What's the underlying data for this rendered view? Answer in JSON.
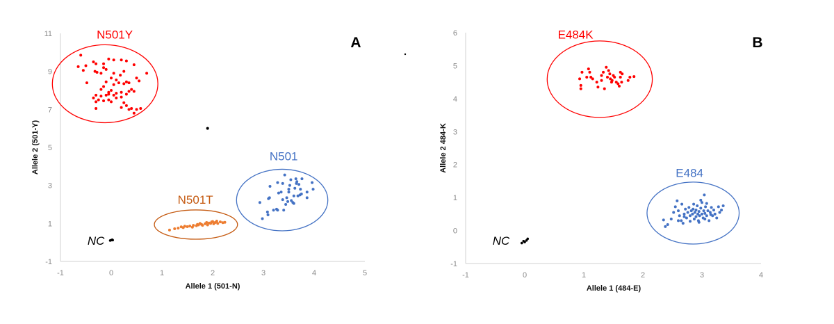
{
  "chart_data": [
    {
      "type": "scatter",
      "panel_label": "A",
      "xlabel": "Allele 1 (501-N)",
      "ylabel": "Allele 2 (501-Y)",
      "xlim": [
        -1,
        5
      ],
      "ylim": [
        -1,
        11
      ],
      "xticks": [
        "-1",
        "0",
        "1",
        "2",
        "3",
        "4",
        "5"
      ],
      "yticks": [
        "-1",
        "1",
        "3",
        "5",
        "7",
        "9",
        "11"
      ],
      "grid": false,
      "series": [
        {
          "name": "N501Y",
          "color": "#ff0000",
          "ellipse_color": "#ff0000",
          "label_color": "#ff0000",
          "label_pos": [
            0.07,
            10.95
          ],
          "ellipse": {
            "cx": -0.12,
            "cy": 8.35,
            "rx": 1.04,
            "ry": 2.05
          },
          "points": [
            [
              -0.65,
              9.25
            ],
            [
              -0.6,
              9.85
            ],
            [
              -0.55,
              9.05
            ],
            [
              -0.5,
              9.3
            ],
            [
              -0.48,
              8.4
            ],
            [
              -0.35,
              9.5
            ],
            [
              -0.3,
              9.4
            ],
            [
              -0.32,
              9.0
            ],
            [
              -0.28,
              8.95
            ],
            [
              -0.2,
              8.9
            ],
            [
              -0.15,
              9.2
            ],
            [
              -0.15,
              9.4
            ],
            [
              -0.1,
              9.1
            ],
            [
              -0.05,
              9.65
            ],
            [
              0.05,
              9.6
            ],
            [
              0.2,
              9.6
            ],
            [
              0.3,
              9.55
            ],
            [
              0.45,
              9.35
            ],
            [
              0.7,
              8.9
            ],
            [
              0.5,
              8.65
            ],
            [
              0.55,
              8.5
            ],
            [
              0.25,
              9.0
            ],
            [
              0.18,
              8.8
            ],
            [
              0.05,
              8.9
            ],
            [
              0.0,
              8.65
            ],
            [
              0.1,
              8.55
            ],
            [
              0.15,
              8.4
            ],
            [
              0.25,
              8.35
            ],
            [
              0.3,
              8.45
            ],
            [
              0.35,
              8.4
            ],
            [
              0.05,
              8.3
            ],
            [
              -0.1,
              8.45
            ],
            [
              -0.15,
              8.2
            ],
            [
              -0.2,
              8.05
            ],
            [
              0.0,
              8.0
            ],
            [
              0.1,
              7.85
            ],
            [
              0.2,
              7.9
            ],
            [
              0.3,
              7.8
            ],
            [
              0.35,
              7.95
            ],
            [
              0.45,
              7.95
            ],
            [
              0.4,
              8.05
            ],
            [
              -0.05,
              7.8
            ],
            [
              -0.1,
              7.75
            ],
            [
              -0.2,
              7.7
            ],
            [
              -0.3,
              7.75
            ],
            [
              -0.35,
              7.6
            ],
            [
              -0.25,
              7.5
            ],
            [
              -0.3,
              7.4
            ],
            [
              -0.15,
              7.45
            ],
            [
              -0.05,
              7.5
            ],
            [
              0.0,
              7.4
            ],
            [
              0.1,
              7.6
            ],
            [
              0.2,
              7.65
            ],
            [
              0.25,
              7.35
            ],
            [
              0.3,
              7.2
            ],
            [
              0.35,
              7.0
            ],
            [
              0.4,
              7.05
            ],
            [
              0.5,
              7.0
            ],
            [
              0.58,
              7.05
            ],
            [
              0.45,
              6.8
            ],
            [
              -0.3,
              7.05
            ],
            [
              0.2,
              7.1
            ],
            [
              -0.05,
              7.9
            ],
            [
              0.05,
              7.75
            ]
          ]
        },
        {
          "name": "N501T",
          "color": "#ed7d31",
          "ellipse_color": "#c55a11",
          "label_color": "#c55a11",
          "label_pos": [
            1.66,
            2.25
          ],
          "ellipse": {
            "cx": 1.67,
            "cy": 0.94,
            "rx": 0.82,
            "ry": 0.77
          },
          "points": [
            [
              1.15,
              0.65
            ],
            [
              1.25,
              0.72
            ],
            [
              1.32,
              0.75
            ],
            [
              1.38,
              0.82
            ],
            [
              1.42,
              0.78
            ],
            [
              1.45,
              0.85
            ],
            [
              1.5,
              0.83
            ],
            [
              1.55,
              0.86
            ],
            [
              1.6,
              0.8
            ],
            [
              1.62,
              0.9
            ],
            [
              1.68,
              0.88
            ],
            [
              1.72,
              0.92
            ],
            [
              1.75,
              1.0
            ],
            [
              1.78,
              0.95
            ],
            [
              1.8,
              0.9
            ],
            [
              1.85,
              0.98
            ],
            [
              1.88,
              1.05
            ],
            [
              1.9,
              0.92
            ],
            [
              1.93,
              1.02
            ],
            [
              1.96,
              1.0
            ],
            [
              2.0,
              1.1
            ],
            [
              2.02,
              0.98
            ],
            [
              2.05,
              1.05
            ],
            [
              2.08,
              1.12
            ],
            [
              2.1,
              1.0
            ],
            [
              2.15,
              1.08
            ],
            [
              2.2,
              1.04
            ],
            [
              2.24,
              1.06
            ],
            [
              1.7,
              0.95
            ],
            [
              1.98,
              1.08
            ]
          ]
        },
        {
          "name": "N501",
          "color": "#4472c4",
          "ellipse_color": "#4472c4",
          "label_color": "#4472c4",
          "label_pos": [
            3.4,
            4.55
          ],
          "ellipse": {
            "cx": 3.37,
            "cy": 2.23,
            "rx": 0.9,
            "ry": 1.62
          },
          "points": [
            [
              2.93,
              2.1
            ],
            [
              2.98,
              1.25
            ],
            [
              3.08,
              1.6
            ],
            [
              3.09,
              1.45
            ],
            [
              3.1,
              2.3
            ],
            [
              3.12,
              2.35
            ],
            [
              3.13,
              2.95
            ],
            [
              3.2,
              1.7
            ],
            [
              3.26,
              1.75
            ],
            [
              3.28,
              1.7
            ],
            [
              3.28,
              3.15
            ],
            [
              3.3,
              2.6
            ],
            [
              3.35,
              2.65
            ],
            [
              3.38,
              3.1
            ],
            [
              3.38,
              2.25
            ],
            [
              3.4,
              1.7
            ],
            [
              3.42,
              3.55
            ],
            [
              3.44,
              2.0
            ],
            [
              3.46,
              2.35
            ],
            [
              3.48,
              2.15
            ],
            [
              3.5,
              2.8
            ],
            [
              3.5,
              2.65
            ],
            [
              3.52,
              3.0
            ],
            [
              3.54,
              3.3
            ],
            [
              3.55,
              2.2
            ],
            [
              3.58,
              2.1
            ],
            [
              3.6,
              2.05
            ],
            [
              3.62,
              2.85
            ],
            [
              3.64,
              3.35
            ],
            [
              3.65,
              3.1
            ],
            [
              3.68,
              2.45
            ],
            [
              3.7,
              3.05
            ],
            [
              3.72,
              2.5
            ],
            [
              3.73,
              2.8
            ],
            [
              3.75,
              2.55
            ],
            [
              3.76,
              3.35
            ],
            [
              3.86,
              2.65
            ],
            [
              3.86,
              2.35
            ],
            [
              3.96,
              3.15
            ],
            [
              3.98,
              2.8
            ],
            [
              3.66,
              3.2
            ],
            [
              3.6,
              2.45
            ]
          ]
        },
        {
          "name": "NC",
          "color": "#000000",
          "label_pos": [
            -0.3,
            0.1
          ],
          "points": [
            [
              0,
              0.12
            ],
            [
              0.02,
              0.14
            ],
            [
              -0.02,
              0.1
            ],
            [
              0.03,
              0.12
            ]
          ]
        },
        {
          "color": "#000000",
          "points": [
            [
              1.9,
              6.0
            ]
          ]
        }
      ]
    },
    {
      "type": "scatter",
      "panel_label": "B",
      "xlabel": "Allele 1 (484-E)",
      "ylabel": "Allele 2 484-K",
      "xlim": [
        -1,
        4
      ],
      "ylim": [
        -1,
        6
      ],
      "xticks": [
        "-1",
        "0",
        "1",
        "2",
        "3",
        "4"
      ],
      "yticks": [
        "-1",
        "0",
        "1",
        "2",
        "3",
        "4",
        "5",
        "6"
      ],
      "grid": false,
      "series": [
        {
          "name": "E484K",
          "color": "#ff0000",
          "ellipse_color": "#ff0000",
          "label_color": "#ff0000",
          "label_pos": [
            0.86,
            5.95
          ],
          "ellipse": {
            "cx": 1.27,
            "cy": 4.59,
            "rx": 0.89,
            "ry": 1.16
          },
          "points": [
            [
              0.93,
              4.6
            ],
            [
              0.95,
              4.4
            ],
            [
              0.95,
              4.3
            ],
            [
              0.97,
              4.8
            ],
            [
              1.05,
              4.65
            ],
            [
              1.08,
              4.9
            ],
            [
              1.1,
              4.8
            ],
            [
              1.12,
              4.65
            ],
            [
              1.15,
              4.6
            ],
            [
              1.22,
              4.5
            ],
            [
              1.24,
              4.35
            ],
            [
              1.3,
              4.7
            ],
            [
              1.3,
              4.55
            ],
            [
              1.33,
              4.8
            ],
            [
              1.35,
              4.3
            ],
            [
              1.38,
              4.95
            ],
            [
              1.4,
              4.65
            ],
            [
              1.42,
              4.85
            ],
            [
              1.44,
              4.75
            ],
            [
              1.45,
              4.6
            ],
            [
              1.47,
              4.5
            ],
            [
              1.5,
              4.7
            ],
            [
              1.52,
              4.65
            ],
            [
              1.55,
              4.5
            ],
            [
              1.58,
              4.45
            ],
            [
              1.6,
              4.38
            ],
            [
              1.62,
              4.8
            ],
            [
              1.62,
              4.65
            ],
            [
              1.64,
              4.5
            ],
            [
              1.65,
              4.75
            ],
            [
              1.75,
              4.55
            ],
            [
              1.78,
              4.65
            ],
            [
              1.85,
              4.67
            ],
            [
              1.48,
              4.55
            ]
          ]
        },
        {
          "name": "E484",
          "color": "#4472c4",
          "ellipse_color": "#4472c4",
          "label_color": "#4472c4",
          "label_pos": [
            2.79,
            1.75
          ],
          "ellipse": {
            "cx": 2.85,
            "cy": 0.53,
            "rx": 0.78,
            "ry": 0.94
          },
          "points": [
            [
              2.35,
              0.32
            ],
            [
              2.38,
              0.12
            ],
            [
              2.42,
              0.18
            ],
            [
              2.48,
              0.35
            ],
            [
              2.52,
              0.55
            ],
            [
              2.55,
              0.72
            ],
            [
              2.58,
              0.9
            ],
            [
              2.6,
              0.6
            ],
            [
              2.62,
              0.45
            ],
            [
              2.65,
              0.3
            ],
            [
              2.66,
              0.8
            ],
            [
              2.68,
              0.22
            ],
            [
              2.7,
              0.5
            ],
            [
              2.72,
              0.65
            ],
            [
              2.74,
              0.38
            ],
            [
              2.76,
              0.55
            ],
            [
              2.78,
              0.7
            ],
            [
              2.8,
              0.28
            ],
            [
              2.8,
              0.45
            ],
            [
              2.82,
              0.6
            ],
            [
              2.84,
              0.5
            ],
            [
              2.86,
              0.8
            ],
            [
              2.87,
              0.35
            ],
            [
              2.88,
              0.55
            ],
            [
              2.9,
              0.62
            ],
            [
              2.9,
              0.42
            ],
            [
              2.92,
              0.75
            ],
            [
              2.93,
              0.5
            ],
            [
              2.94,
              0.3
            ],
            [
              2.95,
              0.58
            ],
            [
              2.96,
              0.45
            ],
            [
              2.98,
              0.68
            ],
            [
              3.0,
              0.5
            ],
            [
              3.0,
              0.85
            ],
            [
              3.02,
              0.38
            ],
            [
              3.03,
              0.6
            ],
            [
              3.04,
              1.08
            ],
            [
              3.05,
              0.52
            ],
            [
              3.06,
              0.72
            ],
            [
              3.08,
              0.45
            ],
            [
              3.1,
              0.6
            ],
            [
              3.12,
              0.3
            ],
            [
              3.14,
              0.55
            ],
            [
              3.16,
              0.7
            ],
            [
              3.18,
              0.45
            ],
            [
              3.2,
              0.62
            ],
            [
              3.22,
              0.5
            ],
            [
              3.25,
              0.38
            ],
            [
              3.28,
              0.72
            ],
            [
              3.3,
              0.55
            ],
            [
              3.33,
              0.62
            ],
            [
              3.36,
              0.75
            ],
            [
              2.7,
              0.42
            ],
            [
              2.98,
              0.92
            ],
            [
              3.08,
              0.82
            ],
            [
              2.6,
              0.3
            ],
            [
              2.85,
              0.65
            ],
            [
              3.15,
              0.48
            ],
            [
              2.95,
              0.25
            ],
            [
              3.05,
              0.35
            ]
          ]
        },
        {
          "name": "NC",
          "color": "#000000",
          "label_pos": [
            -0.4,
            -0.3
          ],
          "points": [
            [
              -0.05,
              -0.38
            ],
            [
              0,
              -0.35
            ],
            [
              0.05,
              -0.25
            ],
            [
              -0.02,
              -0.32
            ],
            [
              0.03,
              -0.3
            ]
          ]
        }
      ]
    }
  ]
}
